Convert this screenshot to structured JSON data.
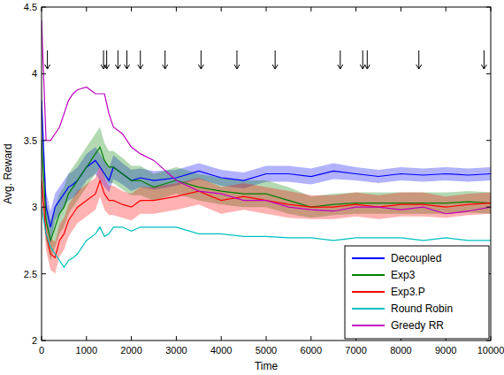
{
  "chart_data": {
    "type": "line",
    "x_label": "Time",
    "y_label": "Avg. Reward",
    "x": [
      0,
      100,
      200,
      300,
      400,
      500,
      600,
      700,
      800,
      1000,
      1200,
      1300,
      1400,
      1500,
      1600,
      1800,
      2000,
      2200,
      2500,
      3000,
      3500,
      4000,
      4500,
      5000,
      5500,
      6000,
      6500,
      7000,
      7500,
      8000,
      8500,
      9000,
      9500,
      10000
    ],
    "xlim": [
      0,
      10000
    ],
    "xticks": [
      0,
      1000,
      2000,
      3000,
      4000,
      5000,
      6000,
      7000,
      8000,
      9000,
      10000
    ],
    "ylim": [
      2,
      4.5
    ],
    "yticks": [
      2,
      2.5,
      3,
      3.5,
      4,
      4.5
    ],
    "legend": "bottom-right",
    "grid": false,
    "arrows": [
      130,
      1380,
      1450,
      1700,
      1900,
      2200,
      2750,
      3550,
      4350,
      5200,
      6650,
      7150,
      7250,
      8400,
      9850
    ],
    "series": [
      {
        "name": "Decoupled",
        "color": "#0000ff",
        "values": [
          3.8,
          3.0,
          2.85,
          3.0,
          3.05,
          3.1,
          3.15,
          3.17,
          3.2,
          3.3,
          3.35,
          3.3,
          3.25,
          3.2,
          3.3,
          3.25,
          3.2,
          3.22,
          3.2,
          3.22,
          3.27,
          3.22,
          3.2,
          3.25,
          3.25,
          3.23,
          3.27,
          3.25,
          3.23,
          3.25,
          3.24,
          3.25,
          3.24,
          3.25
        ],
        "error": [
          0.1,
          0.12,
          0.12,
          0.1,
          0.1,
          0.1,
          0.1,
          0.1,
          0.1,
          0.1,
          0.1,
          0.1,
          0.1,
          0.09,
          0.09,
          0.08,
          0.08,
          0.07,
          0.07,
          0.06,
          0.06,
          0.06,
          0.06,
          0.06,
          0.06,
          0.06,
          0.06,
          0.05,
          0.05,
          0.05,
          0.05,
          0.05,
          0.05,
          0.05
        ]
      },
      {
        "name": "Exp3",
        "color": "#008000",
        "values": [
          3.5,
          2.9,
          2.75,
          2.85,
          2.95,
          3.0,
          3.1,
          3.15,
          3.2,
          3.3,
          3.4,
          3.45,
          3.35,
          3.3,
          3.3,
          3.25,
          3.2,
          3.2,
          3.15,
          3.2,
          3.15,
          3.12,
          3.1,
          3.1,
          3.05,
          3.0,
          3.02,
          3.03,
          3.03,
          3.03,
          3.03,
          3.03,
          3.04,
          3.03
        ],
        "error": [
          0.15,
          0.15,
          0.15,
          0.15,
          0.15,
          0.15,
          0.15,
          0.15,
          0.15,
          0.15,
          0.15,
          0.15,
          0.13,
          0.12,
          0.12,
          0.12,
          0.11,
          0.11,
          0.1,
          0.1,
          0.1,
          0.1,
          0.1,
          0.1,
          0.1,
          0.08,
          0.08,
          0.08,
          0.08,
          0.08,
          0.08,
          0.08,
          0.08,
          0.08
        ]
      },
      {
        "name": "Exp3.P",
        "color": "#ff0000",
        "values": [
          3.2,
          2.8,
          2.65,
          2.62,
          2.75,
          2.8,
          2.9,
          2.95,
          3.0,
          3.05,
          3.1,
          3.2,
          3.1,
          3.05,
          3.05,
          3.02,
          3.0,
          3.05,
          3.05,
          3.08,
          3.12,
          3.05,
          3.08,
          3.05,
          3.02,
          3.0,
          3.0,
          3.02,
          3.0,
          3.02,
          3.02,
          3.0,
          3.02,
          3.03
        ],
        "error": [
          0.12,
          0.12,
          0.12,
          0.12,
          0.12,
          0.12,
          0.12,
          0.12,
          0.12,
          0.12,
          0.12,
          0.12,
          0.12,
          0.11,
          0.11,
          0.1,
          0.1,
          0.1,
          0.1,
          0.1,
          0.1,
          0.1,
          0.1,
          0.1,
          0.1,
          0.09,
          0.09,
          0.09,
          0.09,
          0.09,
          0.09,
          0.08,
          0.08,
          0.08
        ]
      },
      {
        "name": "Round Robin",
        "color": "#00bfbf",
        "values": [
          3.0,
          2.8,
          2.7,
          2.65,
          2.6,
          2.55,
          2.6,
          2.62,
          2.65,
          2.75,
          2.8,
          2.85,
          2.78,
          2.8,
          2.85,
          2.85,
          2.82,
          2.85,
          2.85,
          2.85,
          2.8,
          2.8,
          2.78,
          2.78,
          2.77,
          2.77,
          2.75,
          2.77,
          2.77,
          2.77,
          2.75,
          2.77,
          2.75,
          2.75
        ]
      },
      {
        "name": "Greedy RR",
        "color": "#bf00bf",
        "values": [
          4.4,
          3.5,
          3.5,
          3.55,
          3.6,
          3.7,
          3.8,
          3.85,
          3.88,
          3.9,
          3.85,
          3.85,
          3.85,
          3.7,
          3.6,
          3.55,
          3.45,
          3.4,
          3.35,
          3.2,
          3.12,
          3.1,
          3.05,
          3.05,
          3.0,
          2.98,
          2.97,
          3.0,
          3.0,
          2.98,
          3.0,
          2.95,
          2.97,
          3.0
        ]
      }
    ]
  }
}
